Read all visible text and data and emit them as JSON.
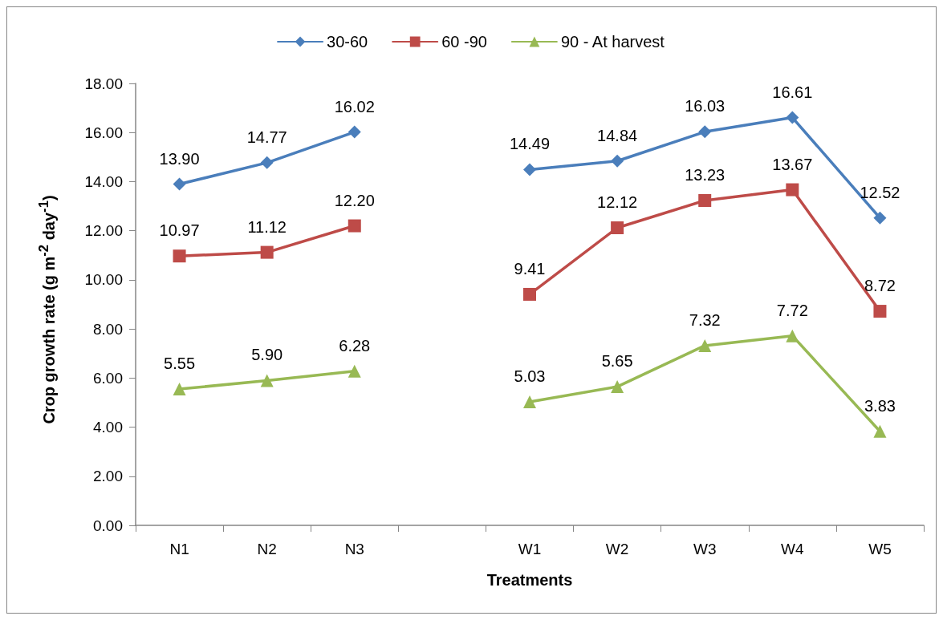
{
  "chart_data": {
    "type": "line",
    "xlabel": "Treatments",
    "ylabel": "Crop growth rate (g m$^{-2}$ day$^{-1}$)",
    "categories": [
      "N1",
      "N2",
      "N3",
      null,
      "W1",
      "W2",
      "W3",
      "W4",
      "W5"
    ],
    "series": [
      {
        "name": "30-60",
        "color": "#4a7ebb",
        "marker": "diamond",
        "values": [
          13.9,
          14.77,
          16.02,
          null,
          14.49,
          14.84,
          16.03,
          16.61,
          12.52
        ],
        "value_labels": [
          "13.90",
          "14.77",
          "16.02",
          null,
          "14.49",
          "14.84",
          "16.03",
          "16.61",
          "12.52"
        ]
      },
      {
        "name": "60 -90",
        "color": "#be4b48",
        "marker": "square",
        "values": [
          10.97,
          11.12,
          12.2,
          null,
          9.41,
          12.12,
          13.23,
          13.67,
          8.72
        ],
        "value_labels": [
          "10.97",
          "11.12",
          "12.20",
          null,
          "9.41",
          "12.12",
          "13.23",
          "13.67",
          "8.72"
        ]
      },
      {
        "name": "90 - At harvest",
        "color": "#98b954",
        "marker": "triangle",
        "values": [
          5.55,
          5.9,
          6.28,
          null,
          5.03,
          5.65,
          7.32,
          7.72,
          3.83
        ],
        "value_labels": [
          "5.55",
          "5.90",
          "6.28",
          null,
          "5.03",
          "5.65",
          "7.32",
          "7.72",
          "3.83"
        ]
      }
    ],
    "ylim": [
      0,
      18
    ],
    "yticks": [
      {
        "value": 0,
        "label": "0.00"
      },
      {
        "value": 2,
        "label": "2.00"
      },
      {
        "value": 4,
        "label": "4.00"
      },
      {
        "value": 6,
        "label": "6.00"
      },
      {
        "value": 8,
        "label": "8.00"
      },
      {
        "value": 10,
        "label": "10.00"
      },
      {
        "value": 12,
        "label": "12.00"
      },
      {
        "value": 14,
        "label": "14.00"
      },
      {
        "value": 16,
        "label": "16.00"
      },
      {
        "value": 18,
        "label": "18.00"
      }
    ],
    "legend": "top",
    "grid": false,
    "line_style": "solid"
  }
}
